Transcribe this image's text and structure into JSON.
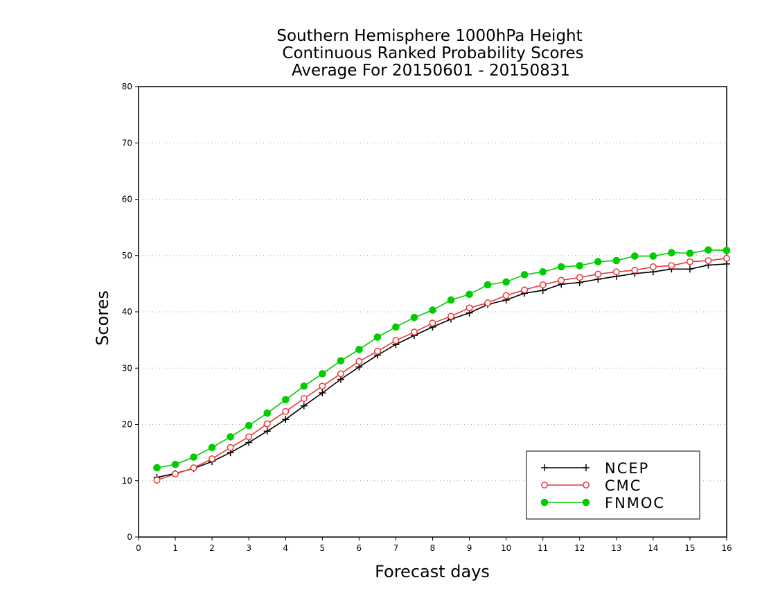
{
  "chart_data": {
    "type": "line",
    "title_lines": [
      "Southern Hemisphere 1000hPa Height",
      "Continuous Ranked Probability Scores",
      "Average For 20150601 - 20150831"
    ],
    "xlabel": "Forecast days",
    "ylabel": "Scores",
    "xlim": [
      0,
      16
    ],
    "ylim": [
      0,
      80
    ],
    "xticks": [
      "0",
      "1",
      "2",
      "3",
      "4",
      "5",
      "6",
      "7",
      "8",
      "9",
      "10",
      "11",
      "12",
      "13",
      "14",
      "15",
      "16"
    ],
    "yticks": [
      "0",
      "10",
      "20",
      "30",
      "40",
      "50",
      "60",
      "70",
      "80"
    ],
    "grid": "horizontal dotted",
    "legend_position": "bottom-right",
    "x": [
      0.5,
      1,
      1.5,
      2,
      2.5,
      3,
      3.5,
      4,
      4.5,
      5,
      5.5,
      6,
      6.5,
      7,
      7.5,
      8,
      8.5,
      9,
      9.5,
      10,
      10.5,
      11,
      11.5,
      12,
      12.5,
      13,
      13.5,
      14,
      14.5,
      15,
      15.5,
      16
    ],
    "series": [
      {
        "name": "NCEP",
        "color": "#000000",
        "marker": "plus",
        "values": [
          10.6,
          11.3,
          12.2,
          13.4,
          15.0,
          16.8,
          18.8,
          20.9,
          23.3,
          25.6,
          28.0,
          30.2,
          32.3,
          34.2,
          35.8,
          37.3,
          38.7,
          39.8,
          41.3,
          42.1,
          43.3,
          43.8,
          44.9,
          45.2,
          45.8,
          46.3,
          46.8,
          47.1,
          47.6,
          47.6,
          48.3,
          48.5
        ]
      },
      {
        "name": "CMC",
        "color": "#e8393a",
        "marker": "open-circle",
        "values": [
          10.1,
          11.2,
          12.3,
          13.9,
          15.9,
          17.8,
          20.1,
          22.3,
          24.6,
          26.8,
          29.0,
          31.2,
          33.0,
          34.9,
          36.4,
          38.0,
          39.2,
          40.7,
          41.6,
          42.9,
          43.9,
          44.8,
          45.6,
          46.1,
          46.7,
          47.1,
          47.4,
          48.0,
          48.2,
          48.9,
          49.1,
          49.5
        ]
      },
      {
        "name": "FNMOC",
        "color": "#00cc00",
        "marker": "filled-circle",
        "values": [
          12.3,
          12.9,
          14.2,
          15.9,
          17.8,
          19.8,
          22.0,
          24.4,
          26.8,
          29.0,
          31.3,
          33.3,
          35.5,
          37.3,
          39.0,
          40.3,
          42.1,
          43.1,
          44.8,
          45.3,
          46.6,
          47.1,
          48.0,
          48.2,
          48.9,
          49.1,
          49.9,
          49.9,
          50.5,
          50.4,
          51.0,
          50.9
        ]
      }
    ]
  }
}
